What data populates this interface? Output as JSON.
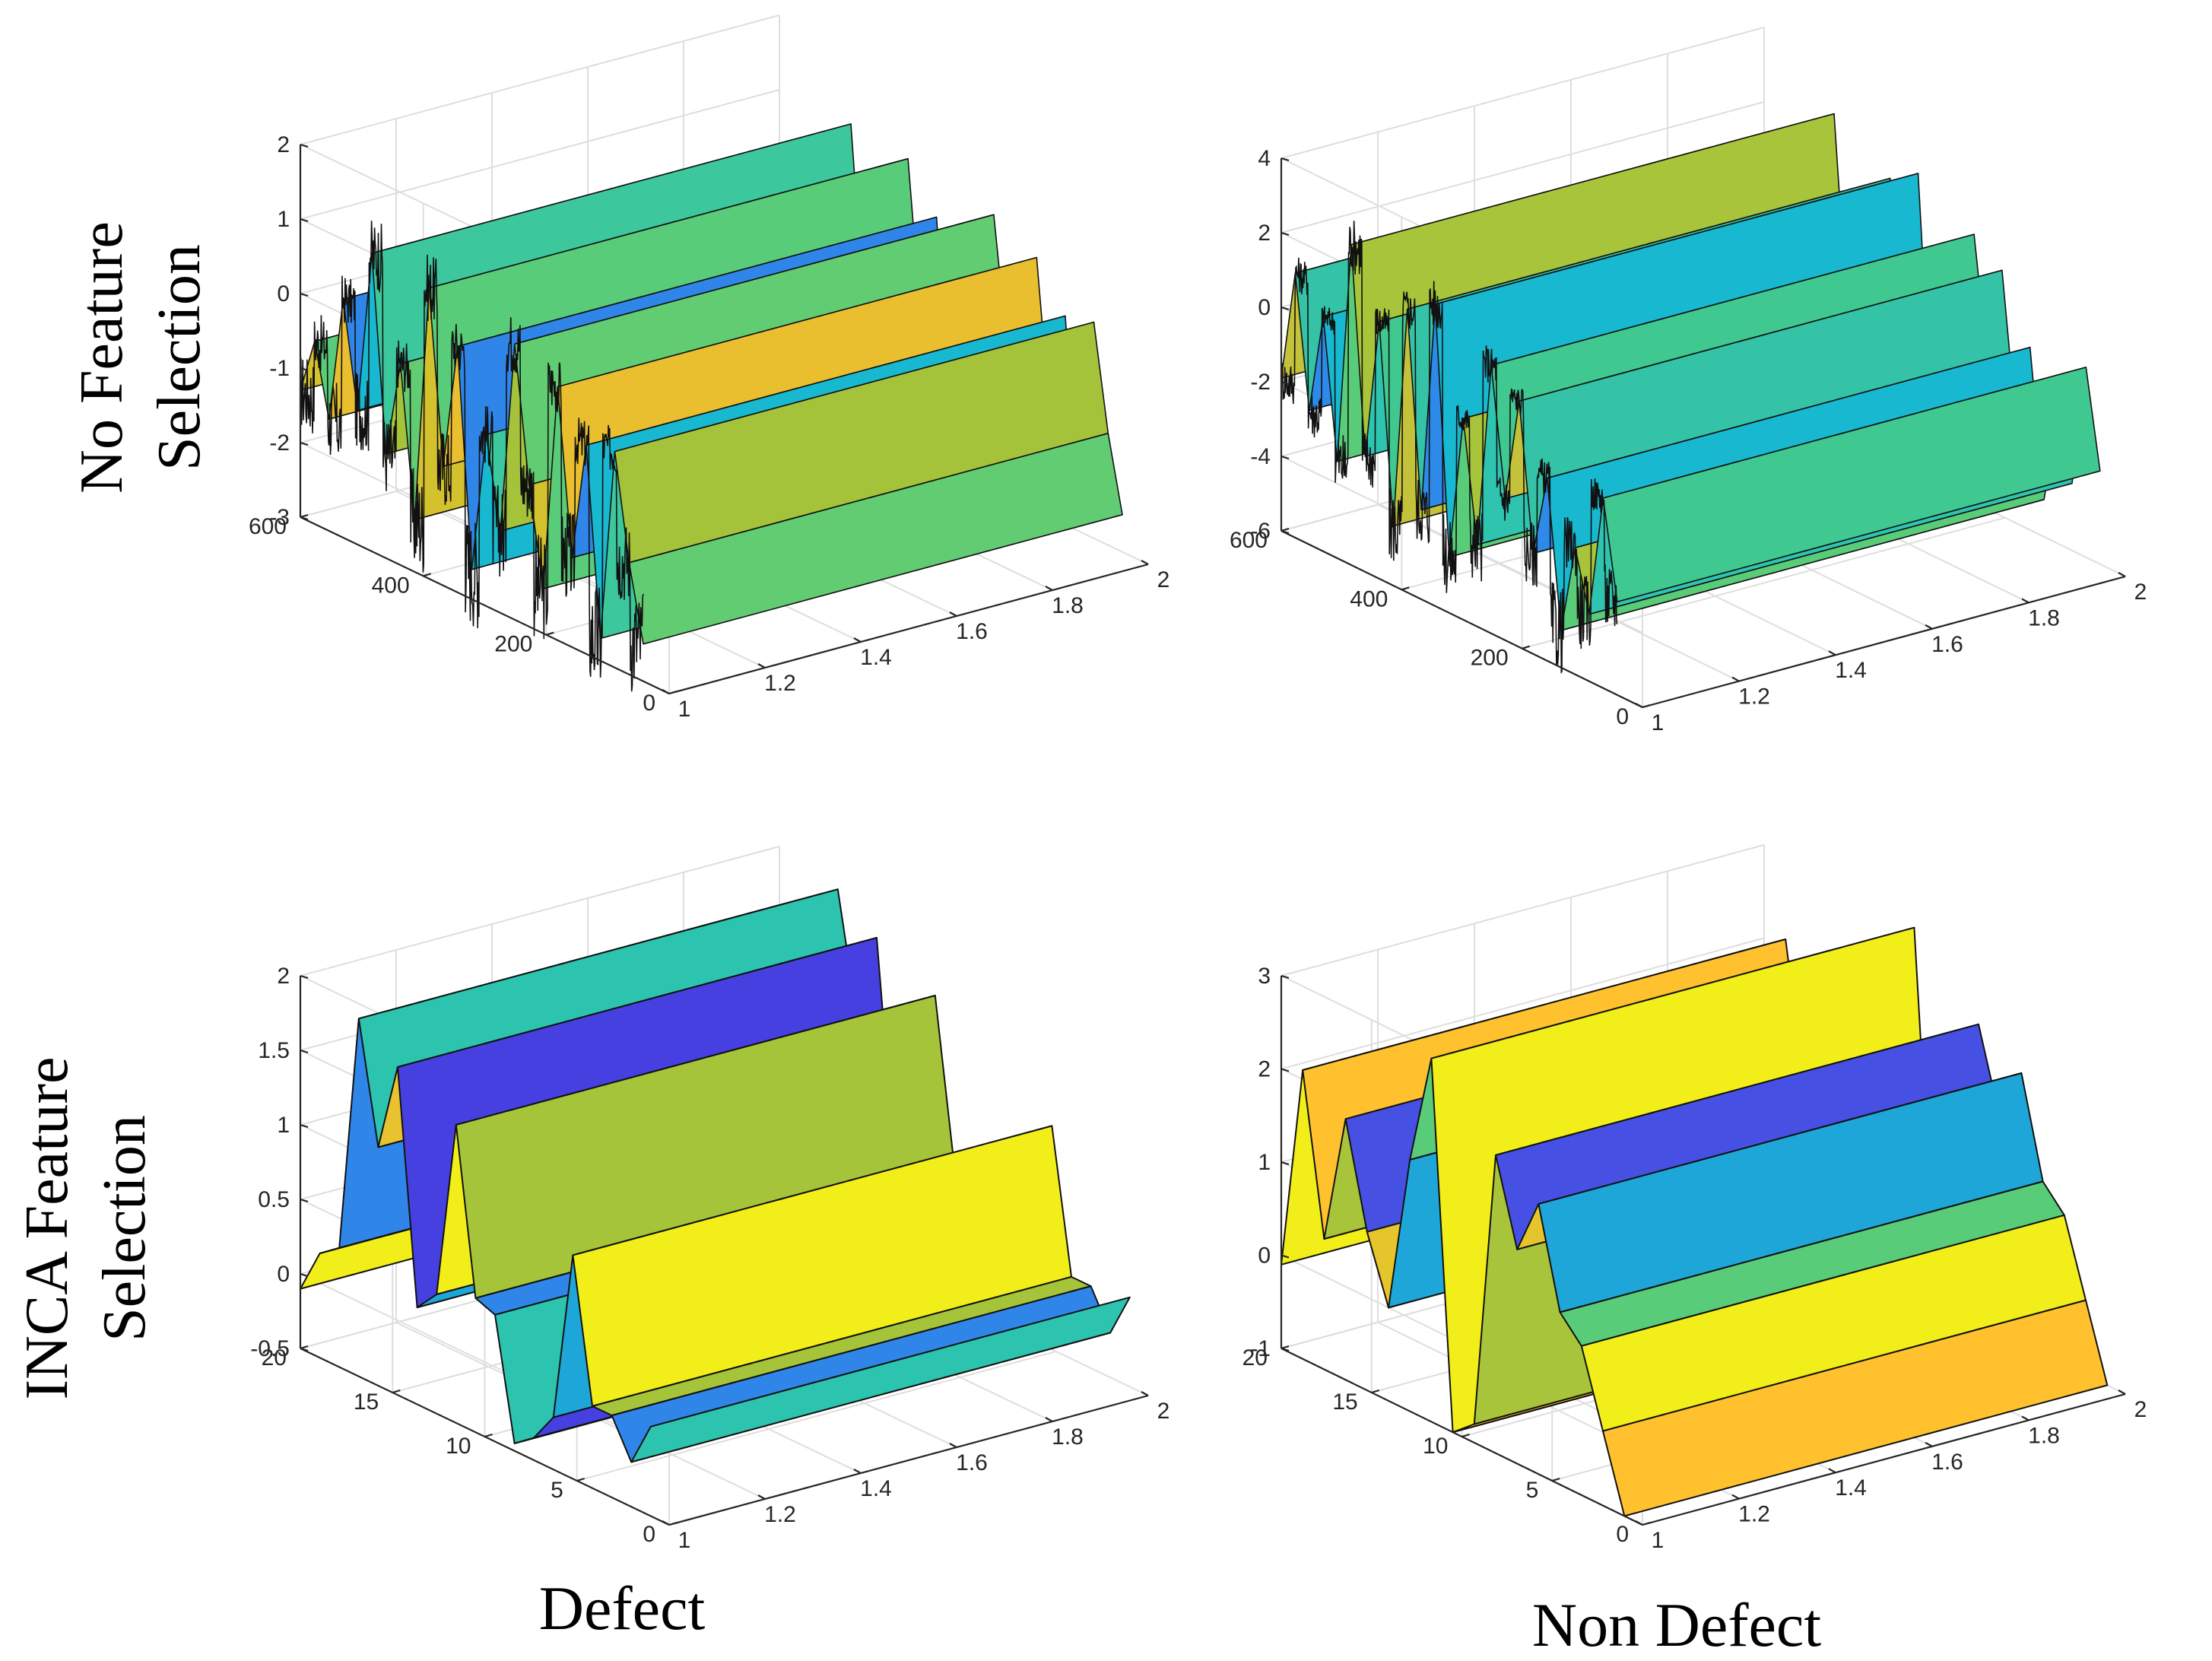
{
  "row_labels": [
    {
      "line1": "No Feature",
      "line2": "Selection"
    },
    {
      "line1": "INCA Feature",
      "line2": "Selection"
    }
  ],
  "column_labels": [
    "Defect",
    "Non Defect"
  ],
  "chart_data": [
    {
      "type": "3d-surface",
      "row": "No Feature Selection",
      "column": "Defect",
      "x_ticks": [
        "1",
        "1.2",
        "1.4",
        "1.6",
        "1.8",
        "2"
      ],
      "y_ticks": [
        "0",
        "200",
        "400",
        "600"
      ],
      "z_ticks": [
        "-3",
        "-2",
        "-1",
        "0",
        "1",
        "2"
      ],
      "xlim": [
        1,
        2
      ],
      "ylim": [
        0,
        600
      ],
      "zlim": [
        -3,
        2
      ],
      "n_samples": 560,
      "profile_edges": [
        -1.3,
        -0.55,
        -1.5,
        0.2,
        -1.2,
        1.0,
        -1.6,
        -0.3,
        -2.3,
        0.9,
        -1.4,
        0.3,
        -2.6,
        -0.7,
        -1.9,
        0.7,
        -1.1,
        -2.4,
        0.4,
        -1.8,
        -0.2,
        -2.7,
        -0.1,
        -1.5,
        -2.5
      ],
      "colors": [
        "#d4c12e",
        "#58cc78",
        "#e9bf30",
        "#2f86e8",
        "#18b8d0",
        "#3cc89c",
        "#a4c33a",
        "#62cc72"
      ]
    },
    {
      "type": "3d-surface",
      "row": "No Feature Selection",
      "column": "Non Defect",
      "x_ticks": [
        "1",
        "1.2",
        "1.4",
        "1.6",
        "1.8",
        "2"
      ],
      "y_ticks": [
        "0",
        "200",
        "400",
        "600"
      ],
      "z_ticks": [
        "-6",
        "-4",
        "-2",
        "0",
        "2",
        "4"
      ],
      "xlim": [
        1,
        2
      ],
      "ylim": [
        0,
        600
      ],
      "zlim": [
        -6,
        4
      ],
      "n_samples": 560,
      "profile_edges": [
        -1.9,
        1.1,
        -2.4,
        0.3,
        -3.4,
        2.6,
        -2.9,
        0.9,
        -4.4,
        1.6,
        -3.6,
        2.1,
        -4.5,
        -0.6,
        -3.8,
        1.2,
        -2.2,
        0.6,
        -3.3,
        -1.1,
        -5.0,
        -2.6,
        -4.2,
        -0.9,
        -3.5
      ],
      "colors": [
        "#c3c23a",
        "#34c3a6",
        "#2d8ae8",
        "#18b8d0",
        "#58cc78",
        "#a8c43a",
        "#2ec4b0",
        "#3fc890"
      ]
    },
    {
      "type": "3d-surface",
      "row": "INCA Feature Selection",
      "column": "Defect",
      "x_ticks": [
        "1",
        "1.2",
        "1.4",
        "1.6",
        "1.8",
        "2"
      ],
      "y_ticks": [
        "0",
        "5",
        "10",
        "15",
        "20"
      ],
      "z_ticks": [
        "-0.5",
        "0",
        "0.5",
        "1",
        "1.5",
        "2"
      ],
      "xlim": [
        1,
        2
      ],
      "ylim": [
        0,
        20
      ],
      "zlim": [
        -0.5,
        2
      ],
      "profile": [
        -0.1,
        0.2,
        0.3,
        1.9,
        1.1,
        1.7,
        0.15,
        0.3,
        1.5,
        0.4,
        0.35,
        -0.45,
        -0.35,
        -0.15,
        1.0,
        0.05,
        0.05,
        -0.2,
        0.1
      ],
      "colors": [
        "#f2ee1a",
        "#a5c43a",
        "#2f86e8",
        "#2cc4ae",
        "#e9c230",
        "#4640e0",
        "#1ea6d8"
      ]
    },
    {
      "type": "3d-surface",
      "row": "INCA Feature Selection",
      "column": "Non Defect",
      "x_ticks": [
        "1",
        "1.2",
        "1.4",
        "1.6",
        "1.8",
        "2"
      ],
      "y_ticks": [
        "0",
        "5",
        "10",
        "15",
        "20"
      ],
      "z_ticks": [
        "-1",
        "0",
        "1",
        "2",
        "3"
      ],
      "xlim": [
        1,
        2
      ],
      "ylim": [
        0,
        20
      ],
      "zlim": [
        -1,
        3
      ],
      "profile": [
        -0.1,
        2.1,
        0.4,
        1.8,
        0.7,
        0.0,
        1.7,
        2.9,
        -1.0,
        -0.8,
        2.2,
        1.3,
        1.9,
        0.85,
        0.6,
        -0.2,
        -1.0
      ],
      "colors": [
        "#f2ee1a",
        "#ffc22e",
        "#a8c43a",
        "#4650e2",
        "#e6c42c",
        "#1ea6d8",
        "#58cc78"
      ]
    }
  ]
}
